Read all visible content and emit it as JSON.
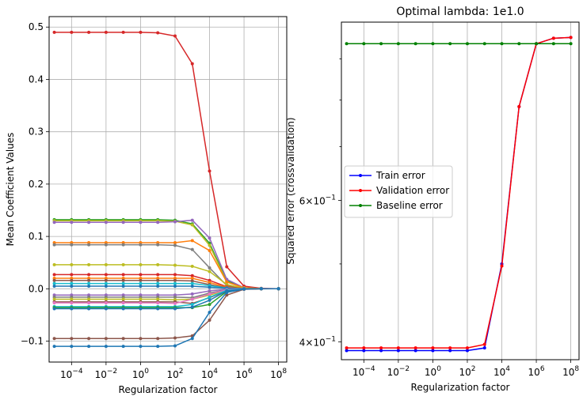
{
  "chart_data": [
    {
      "type": "line",
      "title": "",
      "xlabel": "Regularization factor",
      "ylabel": "Mean Coefficient Values",
      "xscale": "log",
      "xlim": [
        5e-06,
        300000000.0
      ],
      "ylim": [
        -0.14,
        0.52
      ],
      "grid": true,
      "legend": "none",
      "xticks": [
        {
          "value": 0.0001,
          "label": "10",
          "exp": "−4"
        },
        {
          "value": 0.01,
          "label": "10",
          "exp": "−2"
        },
        {
          "value": 1,
          "label": "10",
          "exp": "0"
        },
        {
          "value": 100,
          "label": "10",
          "exp": "2"
        },
        {
          "value": 10000,
          "label": "10",
          "exp": "4"
        },
        {
          "value": 1000000,
          "label": "10",
          "exp": "6"
        },
        {
          "value": 100000000,
          "label": "10",
          "exp": "8"
        }
      ],
      "yticks": [
        {
          "value": -0.1,
          "label": "−0.1"
        },
        {
          "value": 0.0,
          "label": "0.0"
        },
        {
          "value": 0.1,
          "label": "0.1"
        },
        {
          "value": 0.2,
          "label": "0.2"
        },
        {
          "value": 0.3,
          "label": "0.3"
        },
        {
          "value": 0.4,
          "label": "0.4"
        },
        {
          "value": 0.5,
          "label": "0.5"
        }
      ],
      "x": [
        1e-05,
        0.0001,
        0.001,
        0.01,
        0.1,
        1,
        10,
        100,
        1000,
        10000,
        100000,
        1000000,
        10000000,
        100000000
      ],
      "series": [
        {
          "color": "#d62728",
          "values": [
            0.49,
            0.49,
            0.49,
            0.49,
            0.49,
            0.49,
            0.489,
            0.483,
            0.43,
            0.225,
            0.042,
            0.005,
            0.0008,
            0.0001
          ]
        },
        {
          "color": "#2ca02c",
          "values": [
            0.132,
            0.132,
            0.132,
            0.132,
            0.132,
            0.132,
            0.132,
            0.131,
            0.124,
            0.087,
            0.015,
            0.002,
            0.0002,
            0.0
          ]
        },
        {
          "color": "#bcbd22",
          "values": [
            0.13,
            0.13,
            0.13,
            0.13,
            0.13,
            0.13,
            0.13,
            0.129,
            0.122,
            0.083,
            0.013,
            0.002,
            0.0002,
            0.0
          ]
        },
        {
          "color": "#9467bd",
          "values": [
            0.127,
            0.127,
            0.127,
            0.127,
            0.127,
            0.127,
            0.127,
            0.128,
            0.131,
            0.097,
            0.018,
            0.002,
            0.0002,
            0.0
          ]
        },
        {
          "color": "#ff7f0e",
          "values": [
            0.088,
            0.088,
            0.088,
            0.088,
            0.088,
            0.088,
            0.088,
            0.088,
            0.092,
            0.073,
            0.013,
            0.002,
            0.0002,
            0.0
          ]
        },
        {
          "color": "#7f7f7f",
          "values": [
            0.084,
            0.084,
            0.084,
            0.084,
            0.084,
            0.084,
            0.084,
            0.083,
            0.075,
            0.04,
            0.006,
            0.001,
            0.0001,
            0.0
          ]
        },
        {
          "color": "#bcbd22",
          "values": [
            0.046,
            0.046,
            0.046,
            0.046,
            0.046,
            0.046,
            0.046,
            0.045,
            0.043,
            0.033,
            0.008,
            0.001,
            0.0001,
            0.0
          ]
        },
        {
          "color": "#d62728",
          "values": [
            0.027,
            0.027,
            0.027,
            0.027,
            0.027,
            0.027,
            0.027,
            0.027,
            0.025,
            0.016,
            0.004,
            0.0005,
            0.0,
            0.0
          ]
        },
        {
          "color": "#ff7f0e",
          "values": [
            0.02,
            0.02,
            0.02,
            0.02,
            0.02,
            0.02,
            0.02,
            0.02,
            0.02,
            0.012,
            0.003,
            0.0004,
            0.0,
            0.0
          ]
        },
        {
          "color": "#8c564b",
          "values": [
            0.016,
            0.016,
            0.016,
            0.016,
            0.016,
            0.016,
            0.016,
            0.016,
            0.015,
            0.008,
            0.002,
            0.0003,
            0.0,
            0.0
          ]
        },
        {
          "color": "#17becf",
          "values": [
            0.01,
            0.01,
            0.01,
            0.01,
            0.01,
            0.01,
            0.01,
            0.01,
            0.01,
            0.006,
            0.0015,
            0.0002,
            0.0,
            0.0
          ]
        },
        {
          "color": "#1f77b4",
          "values": [
            0.005,
            0.005,
            0.005,
            0.005,
            0.005,
            0.005,
            0.005,
            0.005,
            0.005,
            0.003,
            0.001,
            0.0001,
            0.0,
            0.0
          ]
        },
        {
          "color": "#9467bd",
          "values": [
            -0.012,
            -0.012,
            -0.012,
            -0.012,
            -0.012,
            -0.012,
            -0.012,
            -0.012,
            -0.01,
            -0.004,
            -0.001,
            -0.0001,
            0.0,
            0.0
          ]
        },
        {
          "color": "#7f7f7f",
          "values": [
            -0.016,
            -0.016,
            -0.016,
            -0.016,
            -0.016,
            -0.016,
            -0.016,
            -0.016,
            -0.017,
            -0.008,
            -0.002,
            -0.0002,
            0.0,
            0.0
          ]
        },
        {
          "color": "#bcbd22",
          "values": [
            -0.02,
            -0.02,
            -0.02,
            -0.02,
            -0.02,
            -0.02,
            -0.02,
            -0.021,
            -0.02,
            -0.012,
            -0.003,
            -0.0003,
            0.0,
            0.0
          ]
        },
        {
          "color": "#8c564b",
          "values": [
            -0.025,
            -0.025,
            -0.025,
            -0.025,
            -0.025,
            -0.025,
            -0.025,
            -0.025,
            -0.028,
            -0.017,
            -0.004,
            -0.0004,
            0.0,
            0.0
          ]
        },
        {
          "color": "#e377c2",
          "values": [
            -0.027,
            -0.027,
            -0.027,
            -0.027,
            -0.027,
            -0.027,
            -0.027,
            -0.028,
            -0.02,
            -0.01,
            -0.002,
            -0.0002,
            0.0,
            0.0
          ]
        },
        {
          "color": "#17becf",
          "values": [
            -0.034,
            -0.034,
            -0.034,
            -0.034,
            -0.034,
            -0.034,
            -0.034,
            -0.034,
            -0.03,
            -0.016,
            -0.003,
            -0.0003,
            0.0,
            0.0
          ]
        },
        {
          "color": "#2ca02c",
          "values": [
            -0.036,
            -0.036,
            -0.036,
            -0.036,
            -0.036,
            -0.036,
            -0.036,
            -0.036,
            -0.036,
            -0.03,
            -0.005,
            -0.0005,
            0.0,
            0.0
          ]
        },
        {
          "color": "#1f77b4",
          "values": [
            -0.038,
            -0.038,
            -0.038,
            -0.038,
            -0.038,
            -0.038,
            -0.038,
            -0.038,
            -0.035,
            -0.022,
            -0.004,
            -0.0004,
            0.0,
            0.0
          ]
        },
        {
          "color": "#8c564b",
          "values": [
            -0.095,
            -0.095,
            -0.095,
            -0.095,
            -0.095,
            -0.095,
            -0.095,
            -0.094,
            -0.09,
            -0.06,
            -0.012,
            -0.001,
            -0.0001,
            0.0
          ]
        },
        {
          "color": "#1f77b4",
          "values": [
            -0.11,
            -0.11,
            -0.11,
            -0.11,
            -0.11,
            -0.11,
            -0.11,
            -0.109,
            -0.095,
            -0.045,
            -0.007,
            -0.0007,
            0.0,
            0.0
          ]
        }
      ]
    },
    {
      "type": "line",
      "title": "Optimal lambda: 1e1.0",
      "xlabel": "Regularization factor",
      "ylabel": "Squared error (crossvalidation)",
      "xscale": "log",
      "yscale": "log",
      "xlim": [
        5e-06,
        300000000.0
      ],
      "ylim": [
        0.38,
        1.0
      ],
      "grid": true,
      "grid_axis": "x",
      "legend": "center-left",
      "xticks": [
        {
          "value": 0.0001,
          "label": "10",
          "exp": "−4"
        },
        {
          "value": 0.01,
          "label": "10",
          "exp": "−2"
        },
        {
          "value": 1,
          "label": "10",
          "exp": "0"
        },
        {
          "value": 100,
          "label": "10",
          "exp": "2"
        },
        {
          "value": 10000,
          "label": "10",
          "exp": "4"
        },
        {
          "value": 1000000,
          "label": "10",
          "exp": "6"
        },
        {
          "value": 100000000,
          "label": "10",
          "exp": "8"
        }
      ],
      "yticks_major": [
        {
          "value": 0.4,
          "label": "4×10",
          "exp": "−1"
        },
        {
          "value": 0.6,
          "label": "6×10",
          "exp": "−1"
        }
      ],
      "yticks_minor": [
        0.5,
        0.7,
        0.8,
        0.9
      ],
      "x": [
        1e-05,
        0.0001,
        0.001,
        0.01,
        0.1,
        1,
        10,
        100,
        1000,
        10000,
        100000,
        1000000,
        10000000,
        100000000
      ],
      "series": [
        {
          "name": "Train error",
          "color": "#0000ff",
          "values": [
            0.39,
            0.39,
            0.39,
            0.39,
            0.39,
            0.39,
            0.39,
            0.39,
            0.393,
            0.5,
            0.785,
            0.94,
            0.955,
            0.957
          ]
        },
        {
          "name": "Validation error",
          "color": "#ff0000",
          "values": [
            0.393,
            0.393,
            0.393,
            0.393,
            0.393,
            0.393,
            0.393,
            0.393,
            0.397,
            0.497,
            0.785,
            0.94,
            0.955,
            0.957
          ]
        },
        {
          "name": "Baseline error",
          "color": "#008000",
          "values": [
            0.94,
            0.94,
            0.94,
            0.94,
            0.94,
            0.94,
            0.94,
            0.94,
            0.94,
            0.94,
            0.94,
            0.94,
            0.94,
            0.94
          ]
        }
      ]
    }
  ]
}
